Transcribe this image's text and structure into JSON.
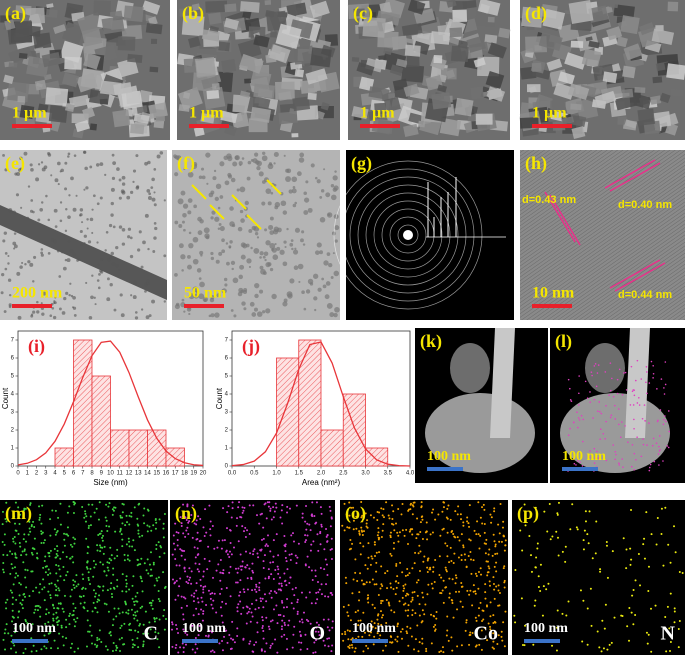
{
  "panels": [
    {
      "label": "(a)",
      "scale_bar": "1 µm"
    },
    {
      "label": "(b)",
      "scale_bar": "1 µm"
    },
    {
      "label": "(c)",
      "scale_bar": "1 µm"
    },
    {
      "label": "(d)",
      "scale_bar": "1 µm"
    },
    {
      "label": "(e)",
      "scale_bar": "200 nm"
    },
    {
      "label": "(f)",
      "scale_bar": "50 nm"
    },
    {
      "label": "(g)"
    },
    {
      "label": "(h)",
      "scale_bar": "10 nm",
      "annotations": [
        "d=0.43 nm",
        "d=0.40 nm",
        "d=0.44 nm"
      ]
    },
    {
      "label": "(k)",
      "scale_bar": "100 nm"
    },
    {
      "label": "(l)",
      "scale_bar": "100 nm"
    },
    {
      "label": "(m)",
      "scale_bar": "100 nm",
      "element": "C"
    },
    {
      "label": "(n)",
      "scale_bar": "100 nm",
      "element": "O"
    },
    {
      "label": "(o)",
      "scale_bar": "100 nm",
      "element": "Co"
    },
    {
      "label": "(p)",
      "scale_bar": "100 nm",
      "element": "N"
    }
  ],
  "chart_data": [
    {
      "type": "histogram",
      "panel_label": "(i)",
      "x_label": "Size (nm)",
      "y_label": "Count",
      "color": "#e8363a",
      "bins": [
        4,
        6,
        8,
        10,
        12,
        14,
        16,
        18
      ],
      "values": [
        1,
        7,
        5,
        2,
        2,
        2,
        1
      ],
      "fit": {
        "x": [
          0,
          1,
          2,
          3,
          4,
          5,
          6,
          7,
          8,
          9,
          10,
          11,
          12,
          13,
          14,
          15,
          16,
          17,
          18,
          19,
          20
        ],
        "values": [
          0.06,
          0.15,
          0.35,
          0.73,
          1.37,
          2.33,
          3.57,
          4.92,
          6.13,
          6.87,
          6.94,
          6.32,
          5.19,
          3.84,
          2.56,
          1.54,
          0.83,
          0.41,
          0.18,
          0.07,
          0.03
        ]
      },
      "xlim": [
        0,
        20
      ],
      "xticks": [
        0,
        1,
        2,
        3,
        4,
        5,
        6,
        7,
        8,
        9,
        10,
        11,
        12,
        13,
        14,
        15,
        16,
        17,
        18,
        19,
        20
      ],
      "ylim": [
        0,
        7.5
      ],
      "yticks": [
        0,
        1,
        2,
        3,
        4,
        5,
        6,
        7
      ]
    },
    {
      "type": "histogram",
      "panel_label": "(j)",
      "x_label": "Area (nm²)",
      "y_label": "Count",
      "color": "#e8363a",
      "bins": [
        1.0,
        1.5,
        2.0,
        2.5,
        3.0,
        3.5
      ],
      "values": [
        6,
        7,
        2,
        4,
        1
      ],
      "fit": {
        "x": [
          0,
          0.25,
          0.5,
          0.75,
          1,
          1.25,
          1.5,
          1.75,
          2,
          2.25,
          2.5,
          2.75,
          3,
          3.25,
          3.5,
          3.75,
          4
        ],
        "values": [
          0.02,
          0.08,
          0.27,
          0.79,
          1.83,
          3.48,
          5.37,
          6.75,
          6.89,
          5.72,
          3.86,
          2.12,
          0.95,
          0.34,
          0.1,
          0.02,
          0
        ]
      },
      "xlim": [
        0,
        4
      ],
      "xticks": [
        {
          "value": 0,
          "label": "0.0"
        },
        0.5,
        {
          "value": 1,
          "label": "1.0"
        },
        1.5,
        {
          "value": 2,
          "label": "2.0"
        },
        2.5,
        {
          "value": 3,
          "label": "3.0"
        },
        3.5,
        {
          "value": 4,
          "label": "4.0"
        }
      ],
      "ylim": [
        0,
        7.5
      ],
      "yticks": [
        0,
        1,
        2,
        3,
        4,
        5,
        6,
        7
      ]
    }
  ]
}
